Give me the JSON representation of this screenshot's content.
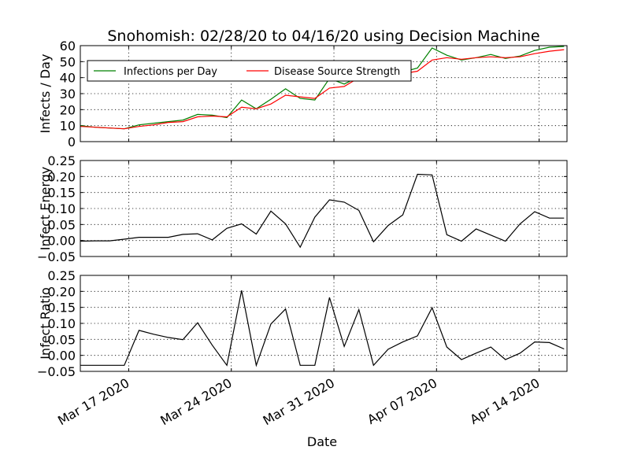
{
  "title": "Snohomish: 02/28/20 to 04/16/20 using Decision Machine",
  "colors": {
    "infections": "#008000",
    "source": "#ff0000",
    "line": "#000000",
    "background": "#ffffff"
  },
  "chart_data": {
    "type": "line",
    "xlabel": "Date",
    "x_tick_labels": [
      "Mar 17 2020",
      "Mar 24 2020",
      "Mar 31 2020",
      "Apr 07 2020",
      "Apr 14 2020"
    ],
    "x_tick_days": [
      17,
      24,
      31,
      38,
      45
    ],
    "x_range_days": [
      13.7,
      46.9
    ],
    "x_days": [
      13.7,
      14.7,
      15.7,
      16.7,
      17.7,
      18.7,
      19.7,
      20.7,
      21.7,
      22.7,
      23.7,
      24.7,
      25.7,
      26.7,
      27.7,
      28.7,
      29.7,
      30.7,
      31.7,
      32.7,
      33.7,
      34.7,
      35.7,
      36.7,
      37.7,
      38.7,
      39.7,
      40.7,
      41.7,
      42.7,
      43.7,
      44.7,
      45.7,
      46.7
    ],
    "panels": [
      {
        "ylabel": "Infects / Day",
        "ylim": [
          0,
          60
        ],
        "yticks": [
          "0",
          "10",
          "20",
          "30",
          "40",
          "50",
          "60"
        ],
        "legend_position": "upper-left",
        "series": [
          {
            "name": "Infections per Day",
            "color": "#008000",
            "values": [
              10.0,
              9.0,
              8.5,
              8.0,
              10.5,
              11.5,
              12.5,
              13.5,
              17.0,
              16.5,
              15.0,
              26.0,
              20.5,
              26.5,
              33.0,
              27.0,
              26.0,
              39.5,
              36.0,
              40.5,
              42.0,
              43.0,
              43.5,
              46.0,
              58.5,
              54.0,
              51.0,
              52.5,
              54.5,
              52.0,
              53.5,
              57.0,
              59.0,
              59.5
            ]
          },
          {
            "name": "Disease Source Strength",
            "color": "#ff0000",
            "values": [
              9.5,
              9.0,
              8.5,
              8.0,
              9.5,
              10.5,
              12.0,
              12.5,
              15.5,
              16.0,
              15.5,
              21.5,
              20.5,
              23.5,
              29.0,
              28.0,
              27.0,
              33.5,
              34.5,
              40.0,
              41.5,
              42.5,
              42.5,
              44.0,
              51.0,
              52.5,
              51.5,
              52.5,
              53.0,
              52.5,
              53.0,
              55.0,
              56.5,
              57.5
            ]
          }
        ]
      },
      {
        "ylabel": "Infect Energy",
        "ylim": [
          -0.05,
          0.25
        ],
        "yticks": [
          "−0.05",
          "0.00",
          "0.05",
          "0.10",
          "0.15",
          "0.20",
          "0.25"
        ],
        "series": [
          {
            "name": "Infect Energy",
            "color": "#000000",
            "values": [
              -0.002,
              -0.001,
              -0.001,
              0.004,
              0.01,
              0.01,
              0.01,
              0.019,
              0.021,
              0.002,
              0.038,
              0.052,
              0.02,
              0.092,
              0.052,
              -0.021,
              0.073,
              0.127,
              0.12,
              0.094,
              -0.004,
              0.047,
              0.08,
              0.207,
              0.205,
              0.018,
              -0.002,
              0.036,
              0.017,
              -0.002,
              0.052,
              0.09,
              0.07,
              0.07
            ]
          }
        ]
      },
      {
        "ylabel": "Infect Ratio",
        "ylim": [
          -0.05,
          0.25
        ],
        "yticks": [
          "−0.05",
          "0.00",
          "0.05",
          "0.10",
          "0.15",
          "0.20",
          "0.25"
        ],
        "series": [
          {
            "name": "Infect Ratio",
            "color": "#000000",
            "values": [
              -0.031,
              -0.031,
              -0.031,
              -0.031,
              0.078,
              0.066,
              0.056,
              0.049,
              0.102,
              0.032,
              -0.031,
              0.203,
              -0.031,
              0.098,
              0.145,
              -0.031,
              -0.031,
              0.181,
              0.028,
              0.143,
              -0.031,
              0.019,
              0.042,
              0.061,
              0.149,
              0.026,
              -0.013,
              0.007,
              0.026,
              -0.013,
              0.007,
              0.042,
              0.04,
              0.02
            ]
          }
        ]
      }
    ]
  }
}
